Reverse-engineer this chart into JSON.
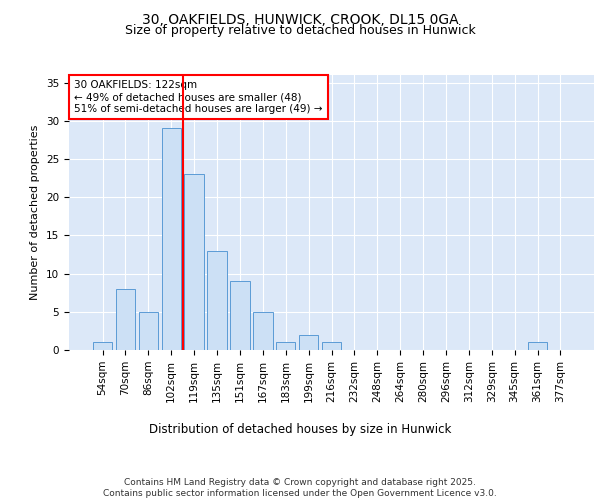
{
  "title1": "30, OAKFIELDS, HUNWICK, CROOK, DL15 0GA",
  "title2": "Size of property relative to detached houses in Hunwick",
  "xlabel": "Distribution of detached houses by size in Hunwick",
  "ylabel": "Number of detached properties",
  "categories": [
    "54sqm",
    "70sqm",
    "86sqm",
    "102sqm",
    "119sqm",
    "135sqm",
    "151sqm",
    "167sqm",
    "183sqm",
    "199sqm",
    "216sqm",
    "232sqm",
    "248sqm",
    "264sqm",
    "280sqm",
    "296sqm",
    "312sqm",
    "329sqm",
    "345sqm",
    "361sqm",
    "377sqm"
  ],
  "values": [
    1,
    8,
    5,
    29,
    23,
    13,
    9,
    5,
    1,
    2,
    1,
    0,
    0,
    0,
    0,
    0,
    0,
    0,
    0,
    1,
    0
  ],
  "bar_color": "#cce0f5",
  "bar_edge_color": "#5b9bd5",
  "vline_position": 3.5,
  "vline_color": "red",
  "annotation_text": "30 OAKFIELDS: 122sqm\n← 49% of detached houses are smaller (48)\n51% of semi-detached houses are larger (49) →",
  "annotation_box_color": "white",
  "annotation_box_edge": "red",
  "ylim": [
    0,
    36
  ],
  "yticks": [
    0,
    5,
    10,
    15,
    20,
    25,
    30,
    35
  ],
  "background_color": "#dce8f8",
  "footer": "Contains HM Land Registry data © Crown copyright and database right 2025.\nContains public sector information licensed under the Open Government Licence v3.0.",
  "title1_fontsize": 10,
  "title2_fontsize": 9,
  "xlabel_fontsize": 8.5,
  "ylabel_fontsize": 8,
  "tick_fontsize": 7.5,
  "annotation_fontsize": 7.5,
  "footer_fontsize": 6.5
}
